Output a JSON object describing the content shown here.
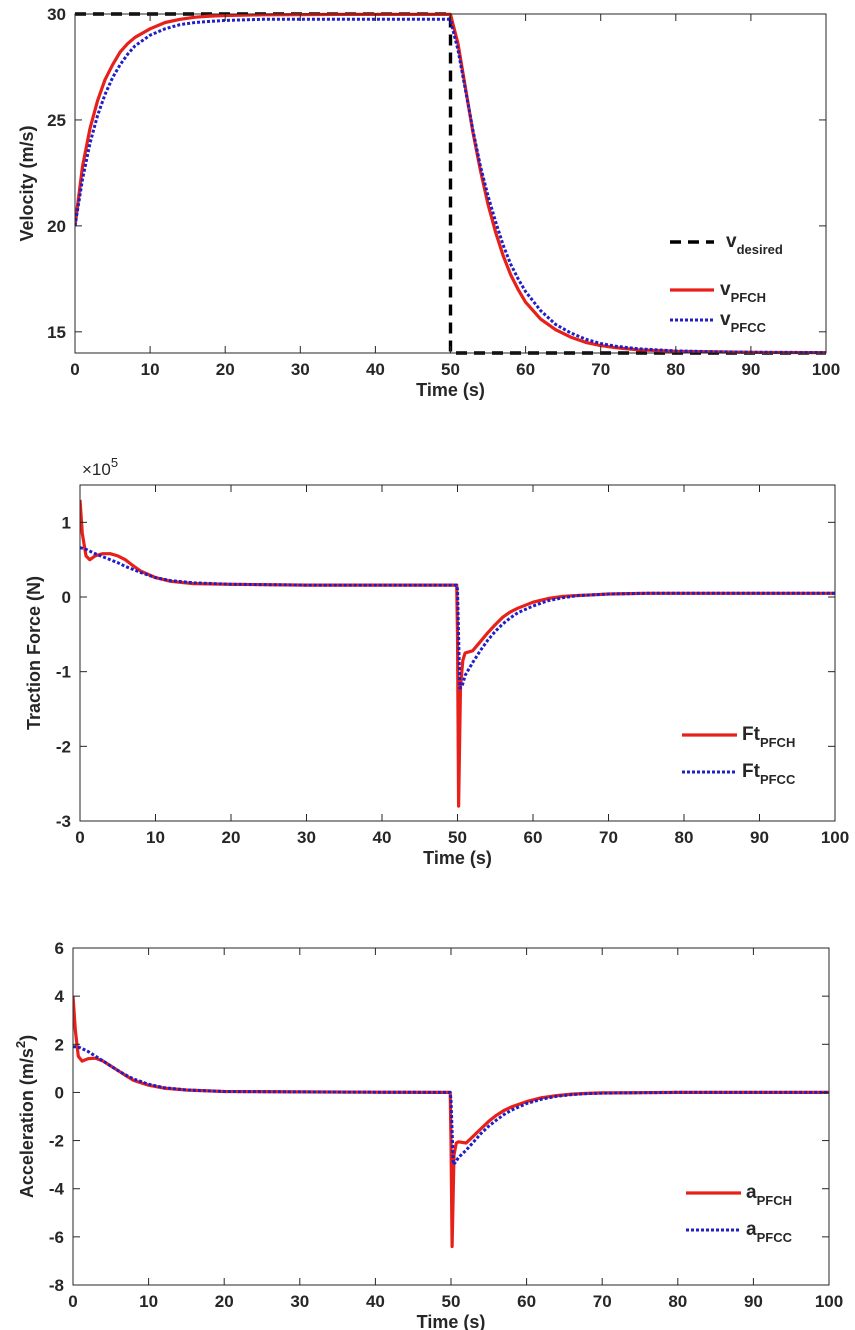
{
  "colors": {
    "desired": "#000000",
    "pfch": "#e8201a",
    "pfcc": "#1f1fc8",
    "axis": "#262626"
  },
  "chart_data": [
    {
      "type": "line",
      "xlabel": "Time (s)",
      "ylabel": "Velocity (m/s)",
      "xlim": [
        0,
        100
      ],
      "ylim": [
        14,
        30
      ],
      "xticks": [
        "0",
        "10",
        "20",
        "30",
        "40",
        "50",
        "60",
        "70",
        "80",
        "90",
        "100"
      ],
      "yticks": [
        "15",
        "20",
        "25",
        "30"
      ],
      "legend_position": "bottom-right",
      "series": [
        {
          "name": "v",
          "sub": "desired",
          "style": "dashed",
          "color_key": "desired",
          "x": [
            0,
            50,
            50,
            100
          ],
          "y": [
            30,
            30,
            14,
            14
          ]
        },
        {
          "name": "v",
          "sub": "PFCH",
          "style": "solid",
          "color_key": "pfch",
          "x": [
            0,
            1,
            2,
            3,
            4,
            5,
            6,
            7,
            8,
            10,
            12,
            14,
            16,
            18,
            20,
            25,
            30,
            35,
            40,
            45,
            49.9,
            50,
            51,
            52,
            53,
            54,
            55,
            56,
            57,
            58,
            59,
            60,
            62,
            64,
            66,
            68,
            70,
            72,
            75,
            80,
            85,
            90,
            100
          ],
          "y": [
            20,
            22.8,
            24.6,
            25.9,
            26.9,
            27.6,
            28.2,
            28.6,
            28.9,
            29.3,
            29.6,
            29.75,
            29.85,
            29.9,
            29.93,
            29.96,
            29.97,
            29.98,
            29.98,
            29.98,
            29.98,
            29.98,
            28.6,
            26.5,
            24.4,
            22.6,
            21.0,
            19.7,
            18.6,
            17.7,
            17.0,
            16.4,
            15.6,
            15.1,
            14.75,
            14.5,
            14.35,
            14.25,
            14.15,
            14.08,
            14.05,
            14.03,
            14.02
          ]
        },
        {
          "name": "v",
          "sub": "PFCC",
          "style": "dotted",
          "color_key": "pfcc",
          "x": [
            0,
            1,
            2,
            3,
            4,
            5,
            6,
            7,
            8,
            10,
            12,
            14,
            16,
            18,
            20,
            25,
            30,
            35,
            40,
            45,
            49.9,
            50,
            51,
            52,
            53,
            54,
            55,
            56,
            57,
            58,
            59,
            60,
            62,
            64,
            66,
            68,
            70,
            72,
            75,
            80,
            85,
            90,
            100
          ],
          "y": [
            20,
            22.2,
            23.9,
            25.2,
            26.2,
            27.0,
            27.6,
            28.1,
            28.5,
            29.0,
            29.3,
            29.5,
            29.6,
            29.65,
            29.7,
            29.75,
            29.75,
            29.75,
            29.75,
            29.75,
            29.75,
            29.7,
            28.3,
            26.4,
            24.5,
            22.8,
            21.4,
            20.2,
            19.1,
            18.2,
            17.5,
            16.9,
            16.0,
            15.35,
            14.95,
            14.65,
            14.45,
            14.32,
            14.2,
            14.1,
            14.06,
            14.04,
            14.02
          ]
        }
      ]
    },
    {
      "type": "line",
      "xlabel": "Time (s)",
      "ylabel": "Traction Force (N)",
      "yexponent_label": "×10",
      "yexponent_value": "5",
      "yexponent": 5,
      "xlim": [
        0,
        100
      ],
      "ylim": [
        -3,
        1.5
      ],
      "xticks": [
        "0",
        "10",
        "20",
        "30",
        "40",
        "50",
        "60",
        "70",
        "80",
        "90",
        "100"
      ],
      "yticks": [
        "-3",
        "-2",
        "-1",
        "0",
        "1"
      ],
      "legend_position": "bottom-right",
      "series": [
        {
          "name": "Ft",
          "sub": "PFCH",
          "style": "solid",
          "color_key": "pfch",
          "x": [
            0,
            0.3,
            0.8,
            1.3,
            2,
            3,
            4,
            5,
            6,
            7,
            8,
            10,
            12,
            15,
            20,
            30,
            40,
            49.9,
            50,
            50.15,
            50.4,
            50.7,
            51,
            52,
            53,
            54,
            55,
            56,
            57,
            58,
            60,
            62,
            64,
            66,
            68,
            70,
            75,
            80,
            90,
            100
          ],
          "y": [
            1.3,
            0.85,
            0.55,
            0.5,
            0.55,
            0.58,
            0.58,
            0.55,
            0.5,
            0.42,
            0.35,
            0.26,
            0.21,
            0.18,
            0.17,
            0.16,
            0.16,
            0.16,
            -0.5,
            -2.8,
            -1.2,
            -0.85,
            -0.75,
            -0.72,
            -0.6,
            -0.48,
            -0.37,
            -0.27,
            -0.2,
            -0.15,
            -0.07,
            -0.02,
            0.01,
            0.02,
            0.03,
            0.04,
            0.05,
            0.05,
            0.05,
            0.05
          ]
        },
        {
          "name": "Ft",
          "sub": "PFCC",
          "style": "dotted",
          "color_key": "pfcc",
          "x": [
            0,
            0.5,
            1,
            2,
            3,
            4,
            5,
            6,
            7,
            8,
            10,
            12,
            15,
            20,
            30,
            40,
            49.9,
            50,
            50.3,
            50.6,
            51,
            52,
            53,
            54,
            55,
            56,
            57,
            58,
            60,
            62,
            64,
            66,
            68,
            70,
            75,
            80,
            90,
            100
          ],
          "y": [
            0.66,
            0.65,
            0.63,
            0.58,
            0.54,
            0.5,
            0.46,
            0.41,
            0.37,
            0.33,
            0.26,
            0.22,
            0.19,
            0.17,
            0.16,
            0.16,
            0.16,
            0.1,
            -1.22,
            -1.2,
            -1.05,
            -0.88,
            -0.72,
            -0.58,
            -0.46,
            -0.36,
            -0.28,
            -0.21,
            -0.12,
            -0.05,
            -0.01,
            0.02,
            0.03,
            0.04,
            0.05,
            0.05,
            0.05,
            0.05
          ]
        }
      ]
    },
    {
      "type": "line",
      "xlabel": "Time (s)",
      "ylabel": "Acceleration (m/s",
      "ylabel_sup": "2",
      "ylabel_close": ")",
      "xlim": [
        0,
        100
      ],
      "ylim": [
        -8,
        6
      ],
      "xticks": [
        "0",
        "10",
        "20",
        "30",
        "40",
        "50",
        "60",
        "70",
        "80",
        "90",
        "100"
      ],
      "yticks": [
        "-8",
        "-6",
        "-4",
        "-2",
        "0",
        "2",
        "4",
        "6"
      ],
      "legend_position": "bottom-right",
      "series": [
        {
          "name": "a",
          "sub": "PFCH",
          "style": "solid",
          "color_key": "pfch",
          "x": [
            0,
            0.3,
            0.7,
            1.2,
            2,
            3,
            4,
            5,
            6,
            7,
            8,
            10,
            12,
            15,
            20,
            30,
            40,
            49.9,
            50,
            50.15,
            50.4,
            50.7,
            51,
            52,
            53,
            54,
            55,
            56,
            57,
            58,
            60,
            62,
            64,
            66,
            68,
            70,
            75,
            80,
            90,
            100
          ],
          "y": [
            4.0,
            2.6,
            1.5,
            1.3,
            1.4,
            1.42,
            1.3,
            1.1,
            0.9,
            0.7,
            0.5,
            0.3,
            0.18,
            0.1,
            0.04,
            0.02,
            0.01,
            0.0,
            -2.0,
            -6.4,
            -2.6,
            -2.1,
            -2.05,
            -2.1,
            -1.8,
            -1.5,
            -1.2,
            -0.95,
            -0.75,
            -0.6,
            -0.38,
            -0.22,
            -0.13,
            -0.07,
            -0.04,
            -0.02,
            -0.01,
            0.0,
            0.0,
            0.0
          ]
        },
        {
          "name": "a",
          "sub": "PFCC",
          "style": "dotted",
          "color_key": "pfcc",
          "x": [
            0,
            0.5,
            1,
            2,
            3,
            4,
            5,
            6,
            7,
            8,
            10,
            12,
            15,
            20,
            30,
            40,
            49.9,
            50,
            50.3,
            50.6,
            51,
            52,
            53,
            54,
            55,
            56,
            57,
            58,
            60,
            62,
            64,
            66,
            68,
            70,
            75,
            80,
            90,
            100
          ],
          "y": [
            1.9,
            1.9,
            1.85,
            1.7,
            1.5,
            1.3,
            1.1,
            0.9,
            0.72,
            0.56,
            0.34,
            0.2,
            0.1,
            0.04,
            0.02,
            0.01,
            0.0,
            -0.3,
            -3.0,
            -2.9,
            -2.7,
            -2.4,
            -2.05,
            -1.7,
            -1.4,
            -1.15,
            -0.92,
            -0.74,
            -0.46,
            -0.28,
            -0.16,
            -0.09,
            -0.05,
            -0.03,
            -0.01,
            0.0,
            0.0,
            0.0
          ]
        }
      ]
    }
  ]
}
